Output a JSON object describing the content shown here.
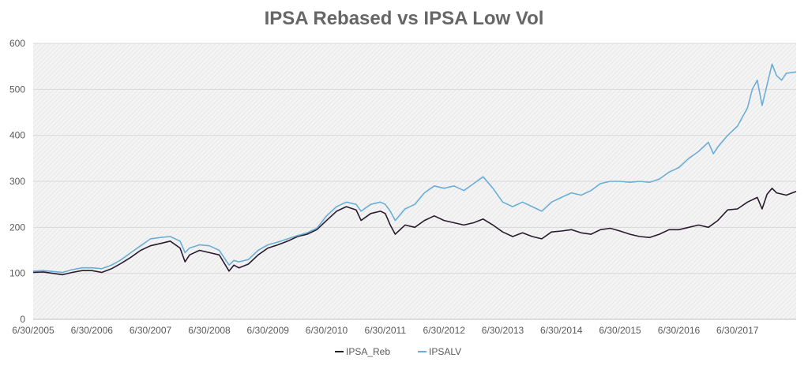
{
  "chart_data": {
    "type": "line",
    "title": "IPSA Rebased vs IPSA Low Vol",
    "xlabel": "",
    "ylabel": "",
    "ylim": [
      0,
      600
    ],
    "yticks": [
      0,
      100,
      200,
      300,
      400,
      500,
      600
    ],
    "xlim": [
      "2005-06-30",
      "2018-06-30"
    ],
    "xticks": [
      "6/30/2005",
      "6/30/2006",
      "6/30/2007",
      "6/30/2008",
      "6/30/2009",
      "6/30/2010",
      "6/30/2011",
      "6/30/2012",
      "6/30/2013",
      "6/30/2014",
      "6/30/2015",
      "6/30/2016",
      "6/30/2017"
    ],
    "grid": "horizontal",
    "legend_position": "bottom",
    "series": [
      {
        "name": "IPSA_Reb",
        "color": "#2a1a2e",
        "points": [
          [
            "2005-06-30",
            102
          ],
          [
            "2005-08-31",
            103
          ],
          [
            "2005-10-31",
            100
          ],
          [
            "2005-12-31",
            97
          ],
          [
            "2006-02-28",
            102
          ],
          [
            "2006-04-30",
            106
          ],
          [
            "2006-06-30",
            106
          ],
          [
            "2006-08-31",
            102
          ],
          [
            "2006-10-31",
            110
          ],
          [
            "2006-12-31",
            122
          ],
          [
            "2007-02-28",
            135
          ],
          [
            "2007-04-30",
            150
          ],
          [
            "2007-06-30",
            160
          ],
          [
            "2007-08-31",
            165
          ],
          [
            "2007-10-31",
            170
          ],
          [
            "2007-12-31",
            155
          ],
          [
            "2008-01-31",
            125
          ],
          [
            "2008-02-28",
            140
          ],
          [
            "2008-04-30",
            150
          ],
          [
            "2008-06-30",
            145
          ],
          [
            "2008-08-31",
            140
          ],
          [
            "2008-10-31",
            105
          ],
          [
            "2008-11-30",
            118
          ],
          [
            "2008-12-31",
            112
          ],
          [
            "2009-02-28",
            120
          ],
          [
            "2009-04-30",
            140
          ],
          [
            "2009-06-30",
            155
          ],
          [
            "2009-08-31",
            162
          ],
          [
            "2009-10-31",
            170
          ],
          [
            "2009-12-31",
            180
          ],
          [
            "2010-02-28",
            185
          ],
          [
            "2010-04-30",
            195
          ],
          [
            "2010-06-30",
            215
          ],
          [
            "2010-08-31",
            235
          ],
          [
            "2010-10-31",
            245
          ],
          [
            "2010-12-31",
            238
          ],
          [
            "2011-01-31",
            215
          ],
          [
            "2011-03-31",
            230
          ],
          [
            "2011-05-31",
            235
          ],
          [
            "2011-06-30",
            230
          ],
          [
            "2011-07-31",
            205
          ],
          [
            "2011-08-31",
            185
          ],
          [
            "2011-10-31",
            205
          ],
          [
            "2011-12-31",
            200
          ],
          [
            "2012-02-29",
            215
          ],
          [
            "2012-04-30",
            225
          ],
          [
            "2012-06-30",
            215
          ],
          [
            "2012-08-31",
            210
          ],
          [
            "2012-10-31",
            205
          ],
          [
            "2012-12-31",
            210
          ],
          [
            "2013-02-28",
            218
          ],
          [
            "2013-04-30",
            205
          ],
          [
            "2013-06-30",
            190
          ],
          [
            "2013-08-31",
            180
          ],
          [
            "2013-10-31",
            188
          ],
          [
            "2013-12-31",
            180
          ],
          [
            "2014-02-28",
            175
          ],
          [
            "2014-04-30",
            190
          ],
          [
            "2014-06-30",
            192
          ],
          [
            "2014-08-31",
            195
          ],
          [
            "2014-10-31",
            188
          ],
          [
            "2014-12-31",
            185
          ],
          [
            "2015-02-28",
            195
          ],
          [
            "2015-04-30",
            198
          ],
          [
            "2015-06-30",
            192
          ],
          [
            "2015-08-31",
            185
          ],
          [
            "2015-10-31",
            180
          ],
          [
            "2015-12-31",
            178
          ],
          [
            "2016-02-29",
            185
          ],
          [
            "2016-04-30",
            195
          ],
          [
            "2016-06-30",
            195
          ],
          [
            "2016-08-31",
            200
          ],
          [
            "2016-10-31",
            205
          ],
          [
            "2016-12-31",
            200
          ],
          [
            "2017-02-28",
            215
          ],
          [
            "2017-04-30",
            238
          ],
          [
            "2017-06-30",
            240
          ],
          [
            "2017-08-31",
            255
          ],
          [
            "2017-10-31",
            265
          ],
          [
            "2017-11-30",
            240
          ],
          [
            "2017-12-31",
            272
          ],
          [
            "2018-01-31",
            285
          ],
          [
            "2018-02-28",
            275
          ],
          [
            "2018-04-30",
            270
          ],
          [
            "2018-06-30",
            278
          ]
        ]
      },
      {
        "name": "IPSALV",
        "color": "#6aaed6",
        "points": [
          [
            "2005-06-30",
            105
          ],
          [
            "2005-08-31",
            106
          ],
          [
            "2005-10-31",
            104
          ],
          [
            "2005-12-31",
            102
          ],
          [
            "2006-02-28",
            108
          ],
          [
            "2006-04-30",
            112
          ],
          [
            "2006-06-30",
            112
          ],
          [
            "2006-08-31",
            110
          ],
          [
            "2006-10-31",
            118
          ],
          [
            "2006-12-31",
            130
          ],
          [
            "2007-02-28",
            145
          ],
          [
            "2007-04-30",
            160
          ],
          [
            "2007-06-30",
            175
          ],
          [
            "2007-08-31",
            178
          ],
          [
            "2007-10-31",
            180
          ],
          [
            "2007-12-31",
            170
          ],
          [
            "2008-01-31",
            145
          ],
          [
            "2008-02-28",
            155
          ],
          [
            "2008-04-30",
            162
          ],
          [
            "2008-06-30",
            160
          ],
          [
            "2008-08-31",
            150
          ],
          [
            "2008-10-31",
            118
          ],
          [
            "2008-11-30",
            128
          ],
          [
            "2008-12-31",
            125
          ],
          [
            "2009-02-28",
            130
          ],
          [
            "2009-04-30",
            150
          ],
          [
            "2009-06-30",
            162
          ],
          [
            "2009-08-31",
            168
          ],
          [
            "2009-10-31",
            175
          ],
          [
            "2009-12-31",
            182
          ],
          [
            "2010-02-28",
            188
          ],
          [
            "2010-04-30",
            198
          ],
          [
            "2010-06-30",
            225
          ],
          [
            "2010-08-31",
            245
          ],
          [
            "2010-10-31",
            255
          ],
          [
            "2010-12-31",
            250
          ],
          [
            "2011-01-31",
            235
          ],
          [
            "2011-03-31",
            250
          ],
          [
            "2011-05-31",
            255
          ],
          [
            "2011-06-30",
            250
          ],
          [
            "2011-07-31",
            235
          ],
          [
            "2011-08-31",
            215
          ],
          [
            "2011-10-31",
            240
          ],
          [
            "2011-12-31",
            250
          ],
          [
            "2012-02-29",
            275
          ],
          [
            "2012-04-30",
            290
          ],
          [
            "2012-06-30",
            285
          ],
          [
            "2012-08-31",
            290
          ],
          [
            "2012-10-31",
            280
          ],
          [
            "2012-12-31",
            295
          ],
          [
            "2013-02-28",
            310
          ],
          [
            "2013-04-30",
            285
          ],
          [
            "2013-06-30",
            255
          ],
          [
            "2013-08-31",
            245
          ],
          [
            "2013-10-31",
            255
          ],
          [
            "2013-12-31",
            245
          ],
          [
            "2014-02-28",
            235
          ],
          [
            "2014-04-30",
            255
          ],
          [
            "2014-06-30",
            265
          ],
          [
            "2014-08-31",
            275
          ],
          [
            "2014-10-31",
            270
          ],
          [
            "2014-12-31",
            280
          ],
          [
            "2015-02-28",
            295
          ],
          [
            "2015-04-30",
            300
          ],
          [
            "2015-06-30",
            300
          ],
          [
            "2015-08-31",
            298
          ],
          [
            "2015-10-31",
            300
          ],
          [
            "2015-12-31",
            298
          ],
          [
            "2016-02-29",
            305
          ],
          [
            "2016-04-30",
            320
          ],
          [
            "2016-06-30",
            330
          ],
          [
            "2016-08-31",
            350
          ],
          [
            "2016-10-31",
            365
          ],
          [
            "2016-12-31",
            385
          ],
          [
            "2017-01-31",
            360
          ],
          [
            "2017-02-28",
            375
          ],
          [
            "2017-04-30",
            400
          ],
          [
            "2017-06-30",
            420
          ],
          [
            "2017-08-31",
            460
          ],
          [
            "2017-09-30",
            500
          ],
          [
            "2017-10-31",
            520
          ],
          [
            "2017-11-30",
            465
          ],
          [
            "2017-12-31",
            510
          ],
          [
            "2018-01-31",
            555
          ],
          [
            "2018-02-28",
            530
          ],
          [
            "2018-03-31",
            520
          ],
          [
            "2018-04-30",
            535
          ],
          [
            "2018-06-30",
            538
          ]
        ]
      }
    ]
  }
}
